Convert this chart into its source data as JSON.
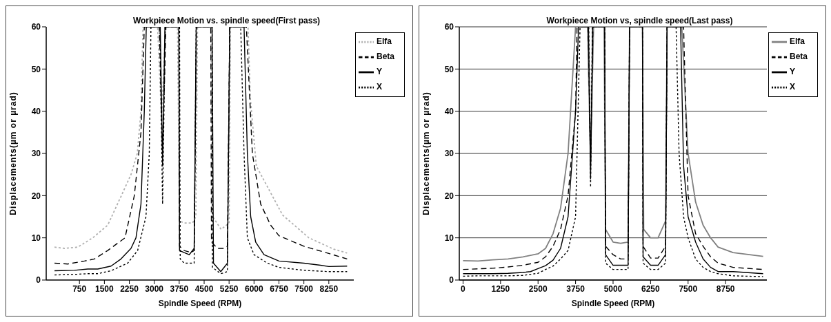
{
  "chart_data": [
    {
      "type": "line",
      "title": "Workpiece Motion vs. spindle speed(First pass)",
      "xlabel": "Spindle Speed (RPM)",
      "ylabel": "Displacements(µm or µrad)",
      "xlim": [
        -250,
        9000
      ],
      "xticks": [
        750,
        1500,
        2250,
        3000,
        3750,
        4500,
        5250,
        6000,
        6750,
        7500,
        8250
      ],
      "ylim": [
        0,
        60
      ],
      "yticks": [
        0,
        10,
        20,
        30,
        40,
        50,
        60
      ],
      "grid": false,
      "legend": "top right",
      "marker": "none",
      "series": [
        {
          "name": "Elfa",
          "color": "#b0b0b0",
          "line_style": "dotted",
          "x": [
            0,
            300,
            700,
            1150,
            1600,
            2010,
            2300,
            2490,
            2600,
            2660,
            3100,
            3220,
            3340,
            3700,
            3760,
            3900,
            4150,
            4250,
            4300,
            4700,
            4760,
            5010,
            5250,
            5290,
            5820,
            5890,
            6070,
            6860,
            7650,
            8400,
            8800
          ],
          "values": [
            7.8,
            7.5,
            7.8,
            10,
            13,
            20,
            25,
            30,
            40,
            60,
            60,
            38,
            60,
            60,
            14,
            13.5,
            13.5,
            15,
            60,
            60,
            15,
            12,
            13.5,
            60,
            60,
            43,
            27,
            15.4,
            10,
            7.3,
            6.4
          ]
        },
        {
          "name": "Beta",
          "color": "#000000",
          "line_style": "dashed",
          "x": [
            0,
            400,
            900,
            1200,
            1600,
            2120,
            2400,
            2600,
            2700,
            3150,
            3250,
            3350,
            3740,
            3760,
            3900,
            4100,
            4200,
            4270,
            4700,
            4720,
            4900,
            5100,
            5200,
            5270,
            5770,
            5950,
            6200,
            6500,
            6750,
            7500,
            8250,
            8800
          ],
          "values": [
            4,
            3.8,
            4.5,
            5,
            7,
            10,
            20,
            35,
            60,
            60,
            30,
            60,
            60,
            8,
            7,
            6.5,
            7,
            60,
            60,
            9,
            7.5,
            7.5,
            8,
            60,
            60,
            30,
            18,
            13,
            10.5,
            8,
            6.3,
            5
          ]
        },
        {
          "name": "Y",
          "color": "#000000",
          "line_style": "solid",
          "x": [
            0,
            600,
            1000,
            1300,
            1700,
            2000,
            2300,
            2450,
            2600,
            2700,
            2760,
            3180,
            3250,
            3320,
            3740,
            3760,
            3900,
            4050,
            4200,
            4260,
            4740,
            4780,
            5000,
            5200,
            5270,
            5700,
            5800,
            5900,
            6050,
            6300,
            6750,
            7500,
            8000,
            8250,
            8800
          ],
          "values": [
            2.2,
            2.3,
            2.6,
            2.6,
            3.3,
            5,
            7.5,
            10,
            18,
            40,
            60,
            60,
            27,
            60,
            60,
            7,
            6.5,
            6,
            7.5,
            60,
            60,
            4,
            2,
            4,
            60,
            60,
            30,
            15,
            9,
            6,
            4.5,
            4,
            3.5,
            3.2,
            3.3
          ]
        },
        {
          "name": "X",
          "color": "#000000",
          "line_style": "dotted",
          "x": [
            0,
            500,
            1000,
            1300,
            1700,
            2200,
            2500,
            2750,
            2850,
            2900,
            3170,
            3250,
            3330,
            3760,
            3780,
            3900,
            4200,
            4260,
            4740,
            4750,
            5000,
            5200,
            5270,
            5600,
            5700,
            5800,
            6000,
            6400,
            6750,
            7500,
            8250,
            8800
          ],
          "values": [
            1.2,
            1.3,
            1.5,
            1.5,
            2.2,
            4,
            7,
            15,
            30,
            60,
            60,
            18,
            60,
            60,
            5,
            4,
            4,
            60,
            60,
            3,
            1.5,
            2,
            60,
            60,
            30,
            10,
            6,
            4,
            3,
            2.3,
            2,
            2
          ]
        }
      ]
    },
    {
      "type": "line",
      "title": "Workpiece Motion vs, spindle speed(Last pass)",
      "xlabel": "Spindle Speed (RPM)",
      "ylabel": "Displacements(µm or µrad)",
      "xlim": [
        -125,
        10125
      ],
      "xticks": [
        0,
        1250,
        2500,
        3750,
        5000,
        6250,
        7500,
        8750
      ],
      "ylim": [
        0,
        60
      ],
      "yticks": [
        0,
        10,
        20,
        30,
        40,
        50,
        60
      ],
      "grid": "y",
      "legend": "top right",
      "marker": "none",
      "series": [
        {
          "name": "Elfa",
          "color": "#808080",
          "line_style": "solid",
          "x": [
            0,
            500,
            1000,
            1500,
            2000,
            2500,
            2750,
            3000,
            3250,
            3500,
            3750,
            4150,
            4250,
            4350,
            4700,
            4750,
            5000,
            5250,
            5500,
            5550,
            5980,
            6020,
            6250,
            6500,
            6750,
            6800,
            7290,
            7500,
            7750,
            8000,
            8250,
            8500,
            9000,
            10000
          ],
          "values": [
            4.6,
            4.5,
            4.8,
            5,
            5.5,
            6.2,
            7.5,
            11,
            17,
            30,
            60,
            60,
            28,
            60,
            60,
            12,
            9,
            8.7,
            9,
            60,
            60,
            12,
            10,
            10,
            14,
            60,
            60,
            30,
            18.5,
            13,
            10,
            7.8,
            6.5,
            5.6
          ]
        },
        {
          "name": "Beta",
          "color": "#000000",
          "line_style": "dashed",
          "x": [
            0,
            1000,
            1500,
            2000,
            2500,
            2750,
            3000,
            3250,
            3500,
            3750,
            3800,
            4170,
            4250,
            4330,
            4720,
            4750,
            5000,
            5250,
            5500,
            5550,
            5980,
            6000,
            6250,
            6500,
            6750,
            6800,
            7350,
            7500,
            7750,
            8000,
            8250,
            8500,
            9000,
            10000
          ],
          "values": [
            2.5,
            2.8,
            3.1,
            3.5,
            4.2,
            5.5,
            8,
            12,
            20,
            40,
            60,
            60,
            27,
            60,
            60,
            8,
            6,
            5,
            5,
            60,
            60,
            8,
            5.2,
            5.2,
            8,
            60,
            60,
            20,
            11,
            8,
            5.5,
            4,
            3,
            2.5
          ]
        },
        {
          "name": "Y",
          "color": "#000000",
          "line_style": "solid",
          "x": [
            0,
            500,
            1000,
            1500,
            2000,
            2250,
            2500,
            2750,
            3000,
            3250,
            3500,
            3750,
            3850,
            4180,
            4250,
            4320,
            4720,
            4750,
            5000,
            5250,
            5500,
            5550,
            5980,
            6000,
            6250,
            6500,
            6750,
            6800,
            7250,
            7350,
            7500,
            7750,
            8000,
            8250,
            8500,
            9000,
            10000
          ],
          "values": [
            1.5,
            1.5,
            1.5,
            1.6,
            1.8,
            2,
            2.7,
            3.4,
            4.7,
            7.5,
            15,
            40,
            60,
            60,
            24,
            60,
            60,
            6,
            3.5,
            3.5,
            3.5,
            60,
            60,
            5.5,
            3.5,
            3.5,
            6,
            60,
            60,
            27,
            15,
            9,
            5,
            3,
            2,
            2,
            1.5
          ]
        },
        {
          "name": "X",
          "color": "#000000",
          "line_style": "dotted",
          "x": [
            0,
            500,
            1000,
            1500,
            2000,
            2500,
            2750,
            3000,
            3250,
            3500,
            3750,
            3900,
            4190,
            4250,
            4310,
            4720,
            4750,
            5000,
            5250,
            5500,
            5550,
            5980,
            6000,
            6250,
            6500,
            6750,
            6800,
            7100,
            7200,
            7350,
            7500,
            7750,
            8000,
            8250,
            8500,
            9000,
            10000
          ],
          "values": [
            0.9,
            1,
            1,
            1,
            1.1,
            1.6,
            2.5,
            3.3,
            5,
            7,
            15,
            60,
            60,
            22,
            60,
            60,
            4,
            2.5,
            2.5,
            2.5,
            60,
            60,
            4,
            2.5,
            2.5,
            4,
            60,
            60,
            30,
            15,
            10,
            5,
            3,
            2,
            1.5,
            1,
            0.8
          ]
        }
      ]
    }
  ]
}
